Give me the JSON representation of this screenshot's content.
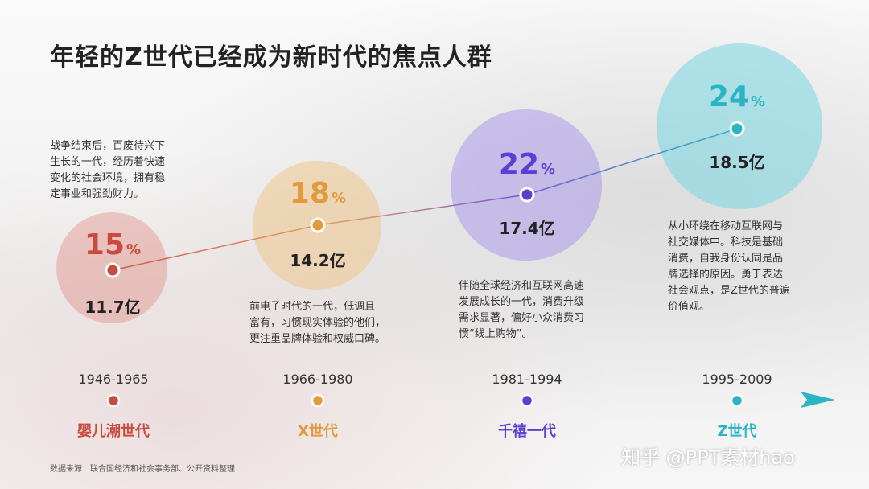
{
  "title": "年轻的Z世代已经成为新时代的焦点人群",
  "generations": [
    {
      "percent": "15",
      "percent_unit": "%",
      "population": "11.7亿",
      "years": "1946-1965",
      "name": "婴儿潮世代",
      "color": "#c94a3f",
      "description": [
        "战争结束后，百废待兴下",
        "生长的一代，经历着快速",
        "变化的社会环境，拥有稳",
        "定事业和强劲财力。"
      ]
    },
    {
      "percent": "18",
      "percent_unit": "%",
      "population": "14.2亿",
      "years": "1966-1980",
      "name": "X世代",
      "color": "#e29a3a",
      "description": [
        "前电子时代的一代，低调且",
        "富有，习惯现实体验的他们，",
        "更注重品牌体验和权威口碑。"
      ]
    },
    {
      "percent": "22",
      "percent_unit": "%",
      "population": "17.4亿",
      "years": "1981-1994",
      "name": "千禧一代",
      "color": "#5b3fd1",
      "description": [
        "伴随全球经济和互联网高速",
        "发展成长的一代，消费升级",
        "需求显著，偏好小众消费习",
        "惯“线上购物”。"
      ]
    },
    {
      "percent": "24",
      "percent_unit": "%",
      "population": "18.5亿",
      "years": "1995-2009",
      "name": "Z世代",
      "color": "#2bb5c4",
      "description": [
        "从小环绕在移动互联网与",
        "社交媒体中。科技是基础",
        "消费，自我身份认同是品",
        "牌选择的原因。勇于表达",
        "社会观点，是Z世代的普遍",
        "价值观。"
      ]
    }
  ],
  "source": "数据来源：联合国经济和社会事务部、公开资料整理",
  "watermark": "知乎 @PPT素材hao"
}
